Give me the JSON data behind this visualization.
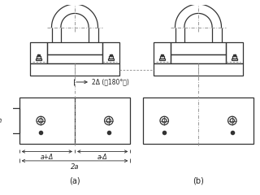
{
  "bg_color": "#ffffff",
  "line_color": "#333333",
  "center_line_color": "#888888",
  "text_color": "#222222",
  "label_a": "(a)",
  "label_b": "(b)",
  "dim_text1": "2Δ (转180°时)",
  "dim_a_plus": "a+Δ",
  "dim_a_minus": "a-Δ",
  "dim_2a": "2a",
  "dim_h": "h"
}
